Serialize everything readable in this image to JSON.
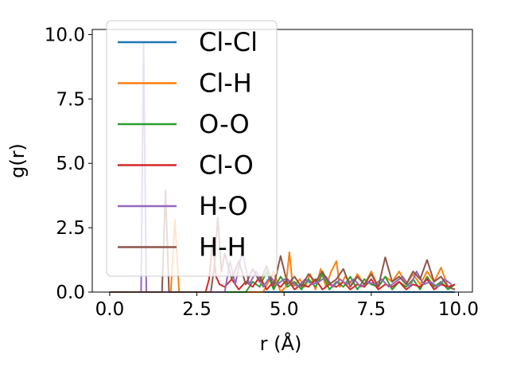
{
  "chart_data": {
    "type": "line",
    "title": "",
    "xlabel": "r (Å)",
    "ylabel": "g(r)",
    "xlim": [
      -0.5,
      10.4
    ],
    "ylim": [
      0,
      10.2
    ],
    "xticks": [
      0.0,
      2.5,
      5.0,
      7.5,
      10.0
    ],
    "xtick_labels": [
      "0.0",
      "2.5",
      "5.0",
      "7.5",
      "10.0"
    ],
    "yticks": [
      0.0,
      2.5,
      5.0,
      7.5,
      10.0
    ],
    "ytick_labels": [
      "0.0",
      "2.5",
      "5.0",
      "7.5",
      "10.0"
    ],
    "grid": false,
    "legend_position": "top-left",
    "series": [
      {
        "name": "Cl-Cl",
        "color": "#1f77b4",
        "x": [
          0,
          9.9
        ],
        "y": [
          0,
          0
        ]
      },
      {
        "name": "Cl-H",
        "color": "#ff7f0e",
        "x": [
          0,
          1.75,
          1.87,
          1.99,
          2.1,
          4.4,
          4.7,
          4.9,
          5.05,
          5.15,
          5.25,
          5.45,
          5.6,
          5.75,
          5.9,
          6.05,
          6.2,
          6.35,
          6.5,
          6.6,
          6.75,
          6.95,
          7.1,
          7.3,
          7.5,
          7.7,
          7.9,
          8.1,
          8.3,
          8.5,
          8.7,
          8.9,
          9.1,
          9.3,
          9.5,
          9.7,
          9.9
        ],
        "y": [
          0,
          0,
          2.8,
          0,
          0,
          0,
          0.8,
          0,
          0.2,
          1.55,
          0.2,
          0.5,
          0.2,
          0.7,
          0.1,
          0.9,
          0.2,
          0.8,
          1.2,
          0.2,
          0.6,
          0.3,
          0.7,
          0.3,
          0.8,
          0.2,
          0.6,
          0.4,
          0.8,
          0.3,
          0.7,
          0.3,
          0.8,
          0.4,
          0.95,
          0.2,
          0.1
        ]
      },
      {
        "name": "O-O",
        "color": "#2ca02c",
        "x": [
          0,
          3.9,
          4.1,
          4.3,
          4.5,
          4.7,
          4.9,
          5.1,
          5.3,
          5.5,
          5.7,
          5.9,
          6.1,
          6.3,
          6.5,
          6.7,
          6.9,
          7.1,
          7.3,
          7.5,
          7.7,
          7.9,
          8.1,
          8.3,
          8.5,
          8.7,
          8.9,
          9.1,
          9.3,
          9.5,
          9.7,
          9.9
        ],
        "y": [
          0,
          0,
          0.4,
          0.2,
          0.8,
          0.1,
          0.6,
          0.2,
          0.4,
          0.1,
          0.5,
          0.2,
          0.7,
          0.1,
          0.4,
          0.2,
          0.6,
          0.1,
          0.5,
          0.3,
          0.2,
          0.6,
          0.1,
          0.4,
          0.2,
          0.5,
          0.1,
          0.6,
          0.2,
          0.4,
          0.1,
          0.3
        ]
      },
      {
        "name": "Cl-O",
        "color": "#d62728",
        "x": [
          0,
          2.75,
          2.85,
          2.95,
          3.05,
          3.15,
          3.3,
          3.5,
          3.7,
          3.9,
          4.1,
          4.3,
          4.5,
          4.7,
          4.9,
          5.1,
          5.3,
          5.5,
          5.7,
          5.9,
          6.1,
          6.3,
          6.5,
          6.7,
          6.9,
          7.1,
          7.3,
          7.5,
          7.7,
          7.9,
          8.1,
          8.3,
          8.5,
          8.7,
          8.9,
          9.1,
          9.3,
          9.5,
          9.7,
          9.9
        ],
        "y": [
          0,
          0,
          0.5,
          2.0,
          0.6,
          0.3,
          0.2,
          0.5,
          0.1,
          0.4,
          0.2,
          0.6,
          0.1,
          0.4,
          0.2,
          0.5,
          0.1,
          0.3,
          0.2,
          0.5,
          0.1,
          0.3,
          0.2,
          0.4,
          0.1,
          0.3,
          0.2,
          0.5,
          0.1,
          0.3,
          0.2,
          0.4,
          0.1,
          0.3,
          0.2,
          0.5,
          0.1,
          0.3,
          0.2,
          0.3
        ]
      },
      {
        "name": "H-O",
        "color": "#9467bd",
        "x": [
          0,
          0.9,
          0.97,
          1.05,
          1.12,
          3.3,
          3.45,
          3.6,
          3.8,
          4.0,
          4.2,
          4.4,
          4.6,
          4.8,
          5.0,
          5.2,
          5.4,
          5.6,
          5.8,
          6.0,
          6.2,
          6.4,
          6.6,
          6.8,
          7.0,
          7.2,
          7.4,
          7.6,
          7.8,
          8.0,
          8.2,
          8.4,
          8.6,
          8.8,
          9.0,
          9.2,
          9.4,
          9.6,
          9.8
        ],
        "y": [
          0,
          0,
          9.7,
          0,
          0,
          0,
          1.2,
          0.3,
          1.6,
          0.3,
          0.8,
          0.2,
          0.6,
          0.3,
          0.5,
          0.4,
          0.2,
          0.5,
          0.3,
          0.4,
          0.6,
          0.2,
          0.5,
          0.3,
          0.5,
          0.2,
          0.4,
          0.3,
          0.5,
          0.2,
          0.4,
          0.6,
          0.2,
          0.8,
          0.3,
          0.4,
          0.2,
          0.5,
          0.3
        ]
      },
      {
        "name": "H-H",
        "color": "#8c564b",
        "x": [
          0,
          1.5,
          1.6,
          1.7,
          1.8,
          2.9,
          3.0,
          3.1,
          3.2,
          3.3,
          3.5,
          3.7,
          3.9,
          4.1,
          4.3,
          4.5,
          4.7,
          4.9,
          5.1,
          5.3,
          5.5,
          5.7,
          5.9,
          6.1,
          6.3,
          6.5,
          6.7,
          6.9,
          7.1,
          7.3,
          7.5,
          7.7,
          7.9,
          8.1,
          8.3,
          8.5,
          8.7,
          8.9,
          9.1,
          9.3,
          9.5,
          9.7,
          9.9
        ],
        "y": [
          0,
          0,
          3.95,
          0,
          0,
          0,
          1.0,
          2.9,
          0.8,
          1.5,
          0.5,
          1.2,
          0.3,
          0.9,
          0.4,
          1.0,
          0.2,
          1.4,
          0.3,
          0.6,
          0.2,
          0.7,
          0.4,
          0.8,
          0.3,
          0.5,
          0.9,
          0.2,
          0.6,
          0.3,
          0.7,
          0.2,
          1.35,
          0.4,
          0.6,
          0.3,
          0.8,
          0.5,
          1.25,
          0.4,
          0.6,
          0.2,
          0.1
        ]
      }
    ]
  }
}
